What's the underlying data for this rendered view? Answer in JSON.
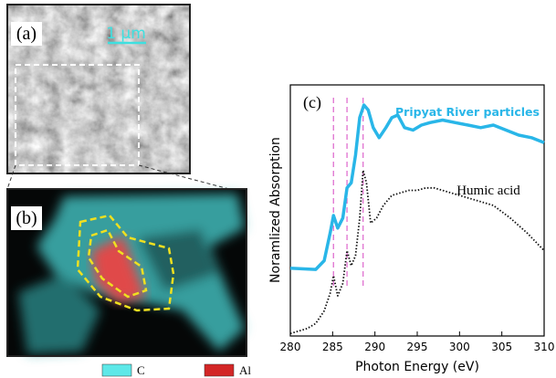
{
  "panels": {
    "a_label": "(a)",
    "scale_bar": "1 μm",
    "b_label": "(b)",
    "legend": [
      "C",
      "Al"
    ]
  },
  "chart_data": {
    "type": "line",
    "panel_label": "(c)",
    "x_label": "Photon Energy (eV)",
    "y_label": "Noramlized Absorption",
    "xlim": [
      280,
      310
    ],
    "xticks": [
      280,
      285,
      290,
      295,
      300,
      305,
      310
    ],
    "ylim": [
      0,
      1
    ],
    "vlines": [
      285.1,
      286.7,
      288.6
    ],
    "series": [
      {
        "name": "Pripyat River particles",
        "color": "#29b6e8",
        "x": [
          280,
          283,
          284,
          284.7,
          285.1,
          285.6,
          286.2,
          286.7,
          287.2,
          287.7,
          288.2,
          288.7,
          289.2,
          289.8,
          290.5,
          291.3,
          292,
          292.7,
          293.5,
          294.5,
          295.5,
          296.5,
          298,
          299.5,
          301,
          302.5,
          304,
          305.5,
          307,
          308.5,
          310
        ],
        "values": [
          0.27,
          0.265,
          0.3,
          0.41,
          0.48,
          0.43,
          0.47,
          0.59,
          0.61,
          0.72,
          0.87,
          0.92,
          0.9,
          0.83,
          0.79,
          0.83,
          0.87,
          0.88,
          0.83,
          0.82,
          0.84,
          0.85,
          0.86,
          0.85,
          0.84,
          0.83,
          0.84,
          0.82,
          0.8,
          0.79,
          0.77
        ]
      },
      {
        "name": "Humic acid",
        "color": "#111111",
        "x": [
          280,
          282,
          283,
          284,
          284.7,
          285.1,
          285.6,
          286.2,
          286.7,
          287.2,
          287.7,
          288.2,
          288.6,
          289,
          289.5,
          290.2,
          291,
          292,
          293,
          294,
          295,
          296,
          297,
          298,
          300,
          302,
          304,
          306,
          308,
          310
        ],
        "values": [
          0.01,
          0.03,
          0.05,
          0.1,
          0.17,
          0.24,
          0.16,
          0.21,
          0.34,
          0.28,
          0.32,
          0.47,
          0.66,
          0.61,
          0.45,
          0.47,
          0.52,
          0.56,
          0.57,
          0.58,
          0.58,
          0.59,
          0.59,
          0.58,
          0.56,
          0.54,
          0.52,
          0.47,
          0.41,
          0.34
        ]
      }
    ]
  }
}
